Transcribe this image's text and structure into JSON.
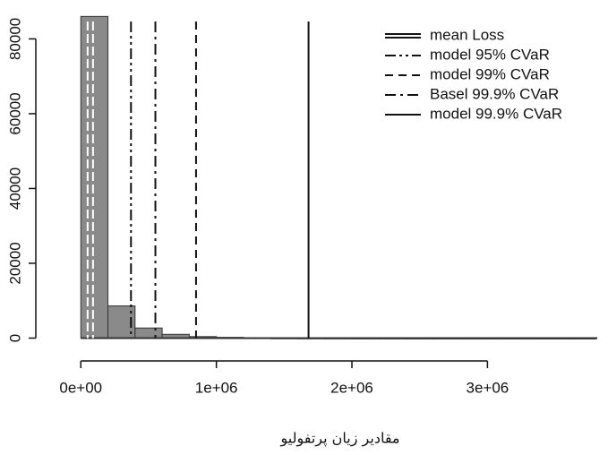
{
  "chart_data": {
    "type": "histogram",
    "xlabel": "مقادیر زیان پرتفولیو",
    "bins": [
      0,
      200000,
      400000,
      600000,
      800000,
      1000000,
      1200000,
      1400000,
      1600000,
      1800000,
      2000000,
      2200000,
      2400000,
      2600000,
      2800000,
      3000000,
      3200000,
      3400000,
      3600000,
      3800000
    ],
    "values": [
      86000,
      8600,
      2700,
      1000,
      400,
      200,
      100,
      60,
      40,
      30,
      20,
      15,
      10,
      8,
      6,
      5,
      4,
      3,
      2
    ],
    "color": "#8a8a8a",
    "xlim": [
      -200000,
      3810000
    ],
    "ylim": [
      -3000,
      88000
    ],
    "xticks": [
      {
        "value": 0,
        "label": "0e+00"
      },
      {
        "value": 1000000,
        "label": "1e+06"
      },
      {
        "value": 2000000,
        "label": "2e+06"
      },
      {
        "value": 3000000,
        "label": "3e+06"
      }
    ],
    "yticks": [
      0,
      20000,
      40000,
      60000,
      80000
    ],
    "vlines": [
      {
        "name": "mean Loss",
        "value": 70000,
        "style": "double"
      },
      {
        "name": "model 95% CVaR",
        "value": 370000,
        "style": "dashdotdot"
      },
      {
        "name": "model 99% CVaR",
        "value": 850000,
        "style": "dashed"
      },
      {
        "name": "Basel 99.9% CVaR",
        "value": 550000,
        "style": "dashdot"
      },
      {
        "name": "model 99.9% CVaR",
        "value": 1680000,
        "style": "solid"
      }
    ],
    "legend": "top-right"
  }
}
